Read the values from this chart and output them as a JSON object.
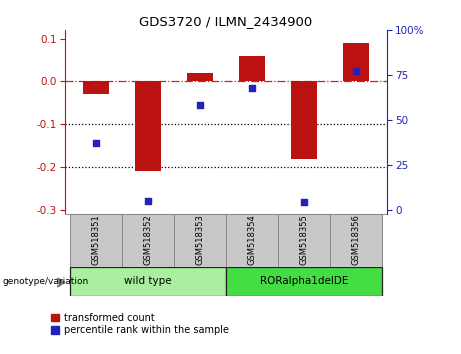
{
  "title": "GDS3720 / ILMN_2434900",
  "samples": [
    "GSM518351",
    "GSM518352",
    "GSM518353",
    "GSM518354",
    "GSM518355",
    "GSM518356"
  ],
  "red_values": [
    -0.03,
    -0.21,
    0.02,
    0.06,
    -0.18,
    0.09
  ],
  "blue_values": [
    37,
    5,
    58,
    68,
    4,
    77
  ],
  "ylim_left": [
    -0.31,
    0.12
  ],
  "ylim_right": [
    -2.583,
    100
  ],
  "yticks_left": [
    -0.3,
    -0.2,
    -0.1,
    0.0,
    0.1
  ],
  "yticks_right": [
    0,
    25,
    50,
    75,
    100
  ],
  "ytick_labels_right": [
    "0",
    "25",
    "50",
    "75",
    "100%"
  ],
  "red_color": "#BB1111",
  "blue_color": "#2222BB",
  "bar_width": 0.5,
  "genotype_groups": [
    {
      "label": "wild type",
      "start": 0,
      "end": 3,
      "color": "#AAEEA0"
    },
    {
      "label": "RORalpha1delDE",
      "start": 3,
      "end": 6,
      "color": "#44DD44"
    }
  ],
  "legend_red": "transformed count",
  "legend_blue": "percentile rank within the sample",
  "xlabel_bottom": "genotype/variation",
  "dot_dash_color": "#CC2222",
  "dotted_color": "#000000",
  "background_color": "#FFFFFF",
  "plot_bg": "#FFFFFF",
  "sample_box_color": "#C8C8C8"
}
